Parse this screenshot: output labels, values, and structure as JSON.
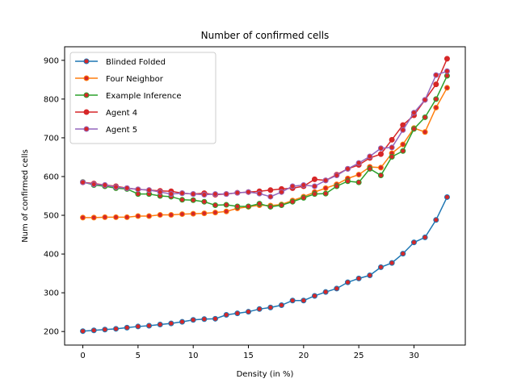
{
  "chart_data": {
    "type": "line",
    "title": "Number of confirmed cells",
    "xlabel": "Density (in %)",
    "ylabel": "Num of confirmed cells",
    "xlim": [
      -1.65,
      34.65
    ],
    "ylim": [
      165,
      935
    ],
    "x_ticks": [
      0,
      5,
      10,
      15,
      20,
      25,
      30
    ],
    "y_ticks": [
      200,
      300,
      400,
      500,
      600,
      700,
      800,
      900
    ],
    "grid": false,
    "legend_position": "top-left",
    "x": [
      0,
      1,
      2,
      3,
      4,
      5,
      6,
      7,
      8,
      9,
      10,
      11,
      12,
      13,
      14,
      15,
      16,
      17,
      18,
      19,
      20,
      21,
      22,
      23,
      24,
      25,
      26,
      27,
      28,
      29,
      30,
      31,
      32,
      33
    ],
    "series": [
      {
        "name": "Blinded Folded",
        "color": "#1f77b4",
        "values": [
          201,
          203,
          205,
          207,
          210,
          213,
          215,
          218,
          221,
          225,
          230,
          232,
          233,
          243,
          247,
          251,
          258,
          262,
          268,
          280,
          280,
          292,
          302,
          311,
          327,
          337,
          345,
          366,
          377,
          401,
          430,
          443,
          488,
          547
        ]
      },
      {
        "name": "Four Neighbor",
        "color": "#ff7f0e",
        "values": [
          494,
          494,
          495,
          495,
          495,
          498,
          498,
          501,
          501,
          503,
          504,
          505,
          507,
          510,
          518,
          522,
          526,
          525,
          528,
          538,
          548,
          560,
          570,
          580,
          595,
          605,
          625,
          623,
          660,
          683,
          725,
          715,
          778,
          829
        ]
      },
      {
        "name": "Example Inference",
        "color": "#2ca02c",
        "values": [
          586,
          578,
          575,
          570,
          568,
          555,
          555,
          550,
          548,
          540,
          539,
          535,
          526,
          527,
          523,
          523,
          530,
          522,
          526,
          535,
          545,
          555,
          556,
          575,
          588,
          585,
          620,
          603,
          651,
          666,
          723,
          753,
          800,
          860
        ]
      },
      {
        "name": "Agent 4",
        "color": "#d62728",
        "values": [
          585,
          582,
          578,
          575,
          570,
          567,
          565,
          563,
          562,
          557,
          555,
          557,
          553,
          555,
          558,
          560,
          562,
          565,
          568,
          570,
          575,
          593,
          590,
          605,
          620,
          630,
          648,
          658,
          695,
          733,
          758,
          798,
          838,
          904
        ]
      },
      {
        "name": "Agent 5",
        "color": "#9467bd",
        "values": [
          585,
          580,
          578,
          573,
          570,
          567,
          565,
          560,
          555,
          557,
          555,
          553,
          555,
          555,
          558,
          560,
          556,
          548,
          560,
          575,
          578,
          575,
          590,
          603,
          620,
          635,
          652,
          673,
          675,
          720,
          765,
          798,
          862,
          872
        ]
      }
    ]
  }
}
